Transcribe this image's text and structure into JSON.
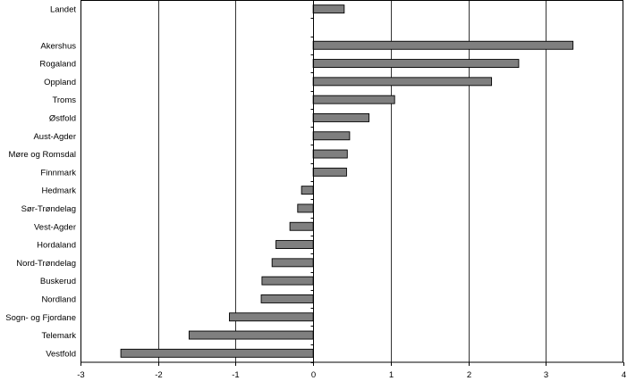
{
  "chart_data": {
    "type": "bar",
    "orientation": "horizontal",
    "categories": [
      "Landet",
      "",
      "Akershus",
      "Rogaland",
      "Oppland",
      "Troms",
      "Østfold",
      "Aust-Agder",
      "Møre og Romsdal",
      "Finnmark",
      "Hedmark",
      "Sør-Trøndelag",
      "Vest-Agder",
      "Hordaland",
      "Nord-Trøndelag",
      "Buskerud",
      "Nordland",
      "Sogn- og Fjordane",
      "Telemark",
      "Vestfold"
    ],
    "values": [
      0.4,
      null,
      3.35,
      2.65,
      2.3,
      1.05,
      0.72,
      0.47,
      0.44,
      0.43,
      -0.15,
      -0.2,
      -0.3,
      -0.48,
      -0.53,
      -0.66,
      -0.67,
      -1.08,
      -1.6,
      -2.48
    ],
    "xlim": [
      -3,
      4
    ],
    "xticks": [
      -3,
      -2,
      -1,
      0,
      1,
      2,
      3,
      4
    ],
    "grid": "vertical",
    "bar_color": "#7f7f7f",
    "title": "",
    "xlabel": "",
    "ylabel": ""
  }
}
